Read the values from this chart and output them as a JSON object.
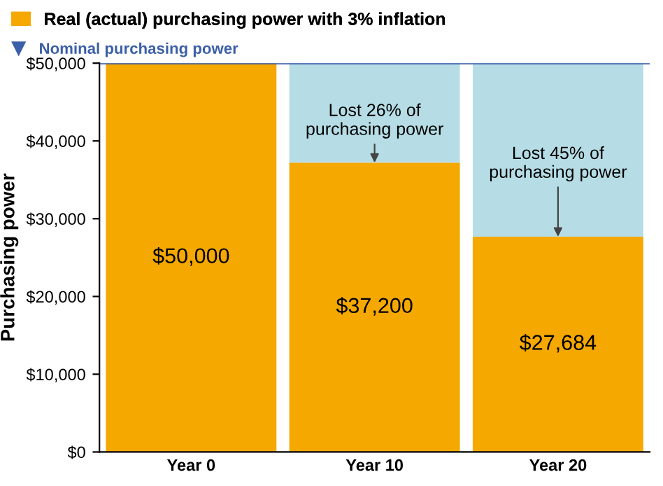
{
  "chart_data": {
    "type": "bar",
    "stacked": true,
    "ylabel": "Purchasing power",
    "categories": [
      "Year 0",
      "Year 10",
      "Year 20"
    ],
    "series": [
      {
        "name": "Real (actual) purchasing power with 3% inflation",
        "color": "#f5a800",
        "values": [
          50000,
          37200,
          27684
        ],
        "value_labels": [
          "$50,000",
          "$37,200",
          "$27,684"
        ]
      },
      {
        "color": "#b6dde6",
        "values": [
          0,
          12800,
          22300
        ]
      }
    ],
    "ylim": [
      0,
      50000
    ],
    "yticks": [
      {
        "value": 0,
        "label": "$0"
      },
      {
        "value": 10000,
        "label": "$10,000"
      },
      {
        "value": 20000,
        "label": "$20,000"
      },
      {
        "value": 30000,
        "label": "$30,000"
      },
      {
        "value": 40000,
        "label": "$40,000"
      },
      {
        "value": 50000,
        "label": "$50,000"
      }
    ],
    "ref_lines": [
      {
        "axis": "y",
        "value": 50000,
        "label": "Nominal purchasing power",
        "color": "#3b5fa8"
      }
    ],
    "annotations": [
      {
        "text": "Lost 26% of\npurchasing power",
        "x": "Year 10",
        "y": 37200
      },
      {
        "text": "Lost 45% of\npurchasing power",
        "x": "Year 20",
        "y": 27684
      }
    ],
    "legend": "top left",
    "grid": false
  }
}
